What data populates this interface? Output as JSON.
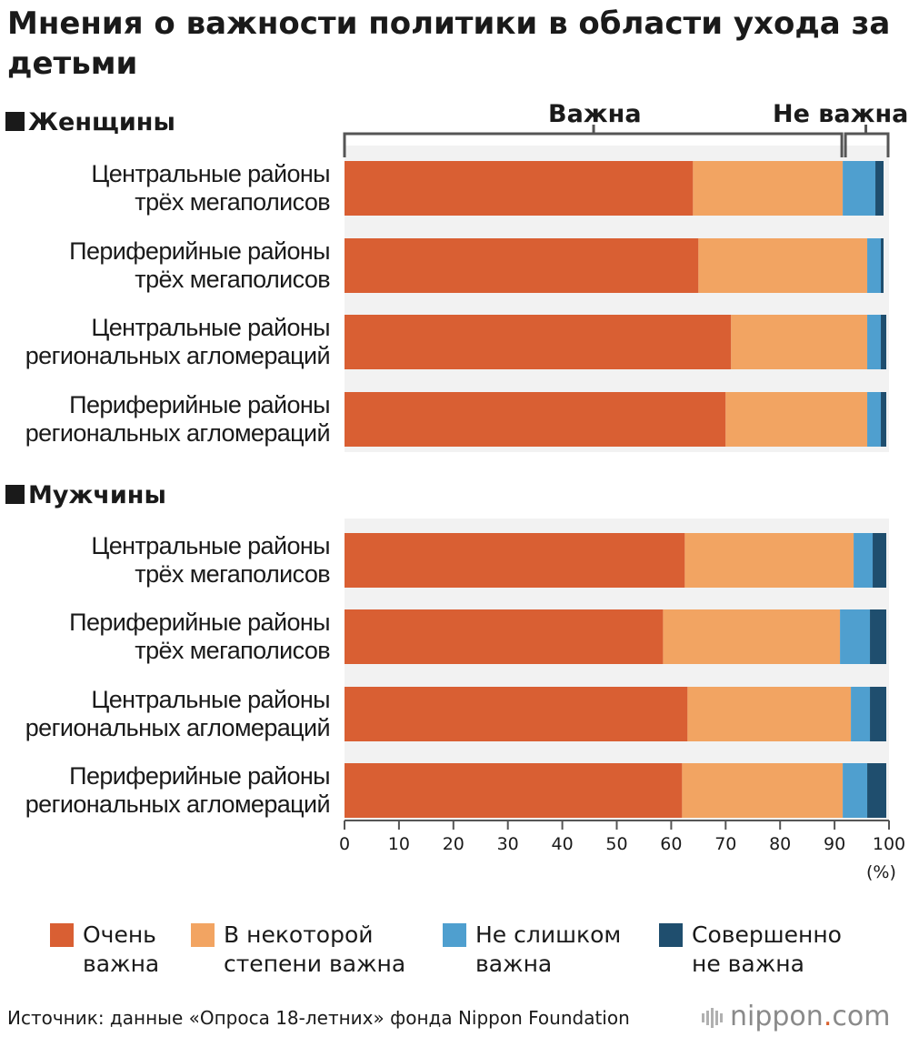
{
  "title": "Мнения о важности политики в области ухода за детьми",
  "colors": {
    "very_important": "#d95f33",
    "somewhat_important": "#f2a462",
    "not_very_important": "#4f9fcf",
    "not_important_at_all": "#1f4e6e",
    "band": "#f2f2f2",
    "axis": "#555555"
  },
  "brackets": {
    "important": "Важна",
    "not_important": "Не важна"
  },
  "axis": {
    "unit": "(%)",
    "ticks": [
      0,
      10,
      20,
      30,
      40,
      50,
      60,
      70,
      80,
      90,
      100
    ]
  },
  "chart_data": {
    "type": "bar",
    "orientation": "horizontal",
    "stacked": true,
    "xlim": [
      0,
      100
    ],
    "groups": [
      {
        "label": "Женщины",
        "categories": [
          [
            "Центральные районы",
            "трёх мегаполисов"
          ],
          [
            "Периферийные районы",
            "трёх мегаполисов"
          ],
          [
            "Центральные районы",
            "региональных агломераций"
          ],
          [
            "Периферийные районы",
            "региональных агломераций"
          ]
        ],
        "series": [
          {
            "name": "Очень важна",
            "values": [
              64.0,
              65.0,
              71.0,
              70.0
            ]
          },
          {
            "name": "В некоторой степени важна",
            "values": [
              27.5,
              31.0,
              25.0,
              26.0
            ]
          },
          {
            "name": "Не слишком важна",
            "values": [
              6.0,
              2.5,
              2.5,
              2.5
            ]
          },
          {
            "name": "Совершенно не важна",
            "values": [
              1.5,
              0.5,
              1.0,
              1.0
            ]
          }
        ]
      },
      {
        "label": "Мужчины",
        "categories": [
          [
            "Центральные районы",
            "трёх мегаполисов"
          ],
          [
            "Периферийные районы",
            "трёх мегаполисов"
          ],
          [
            "Центральные районы",
            "региональных агломераций"
          ],
          [
            "Периферийные районы",
            "региональных агломераций"
          ]
        ],
        "series": [
          {
            "name": "Очень важна",
            "values": [
              62.5,
              58.5,
              63.0,
              62.0
            ]
          },
          {
            "name": "В некоторой степени важна",
            "values": [
              31.0,
              32.5,
              30.0,
              29.5
            ]
          },
          {
            "name": "Не слишком важна",
            "values": [
              3.5,
              5.5,
              3.5,
              4.5
            ]
          },
          {
            "name": "Совершенно не важна",
            "values": [
              2.5,
              3.0,
              3.0,
              3.5
            ]
          }
        ]
      }
    ]
  },
  "legend": [
    {
      "key": "very_important",
      "lines": [
        "Очень",
        "важна"
      ]
    },
    {
      "key": "somewhat_important",
      "lines": [
        "В некоторой",
        "степени важна"
      ]
    },
    {
      "key": "not_very_important",
      "lines": [
        "Не слишком",
        "важна"
      ]
    },
    {
      "key": "not_important_at_all",
      "lines": [
        "Совершенно",
        "не важна"
      ]
    }
  ],
  "source": "Источник: данные «Опроса 18-летних» фонда Nippon Foundation",
  "logo": {
    "name": "nippon",
    "dot": ".",
    "domain": "com"
  }
}
